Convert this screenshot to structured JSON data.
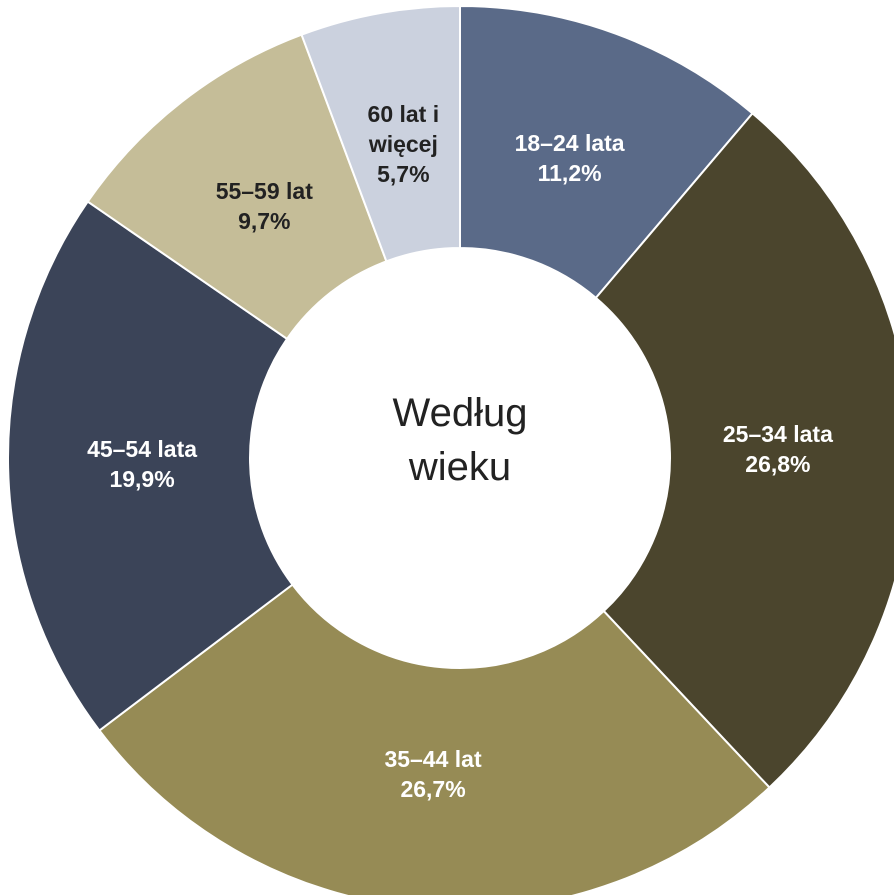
{
  "chart_data": {
    "type": "donut",
    "title": "Według wieku",
    "categories": [
      "18–24 lata",
      "25–34 lata",
      "35–44 lat",
      "45–54 lata",
      "55–59 lat",
      "60 lat i więcej"
    ],
    "values": [
      11.2,
      26.8,
      26.7,
      19.9,
      9.7,
      5.7
    ],
    "value_labels": [
      "11,2%",
      "26,8%",
      "26,7%",
      "19,9%",
      "9,7%",
      "5,7%"
    ],
    "colors": [
      "#5a6a88",
      "#4b452d",
      "#968b55",
      "#3b4458",
      "#c5bd98",
      "#cbd1de"
    ]
  }
}
